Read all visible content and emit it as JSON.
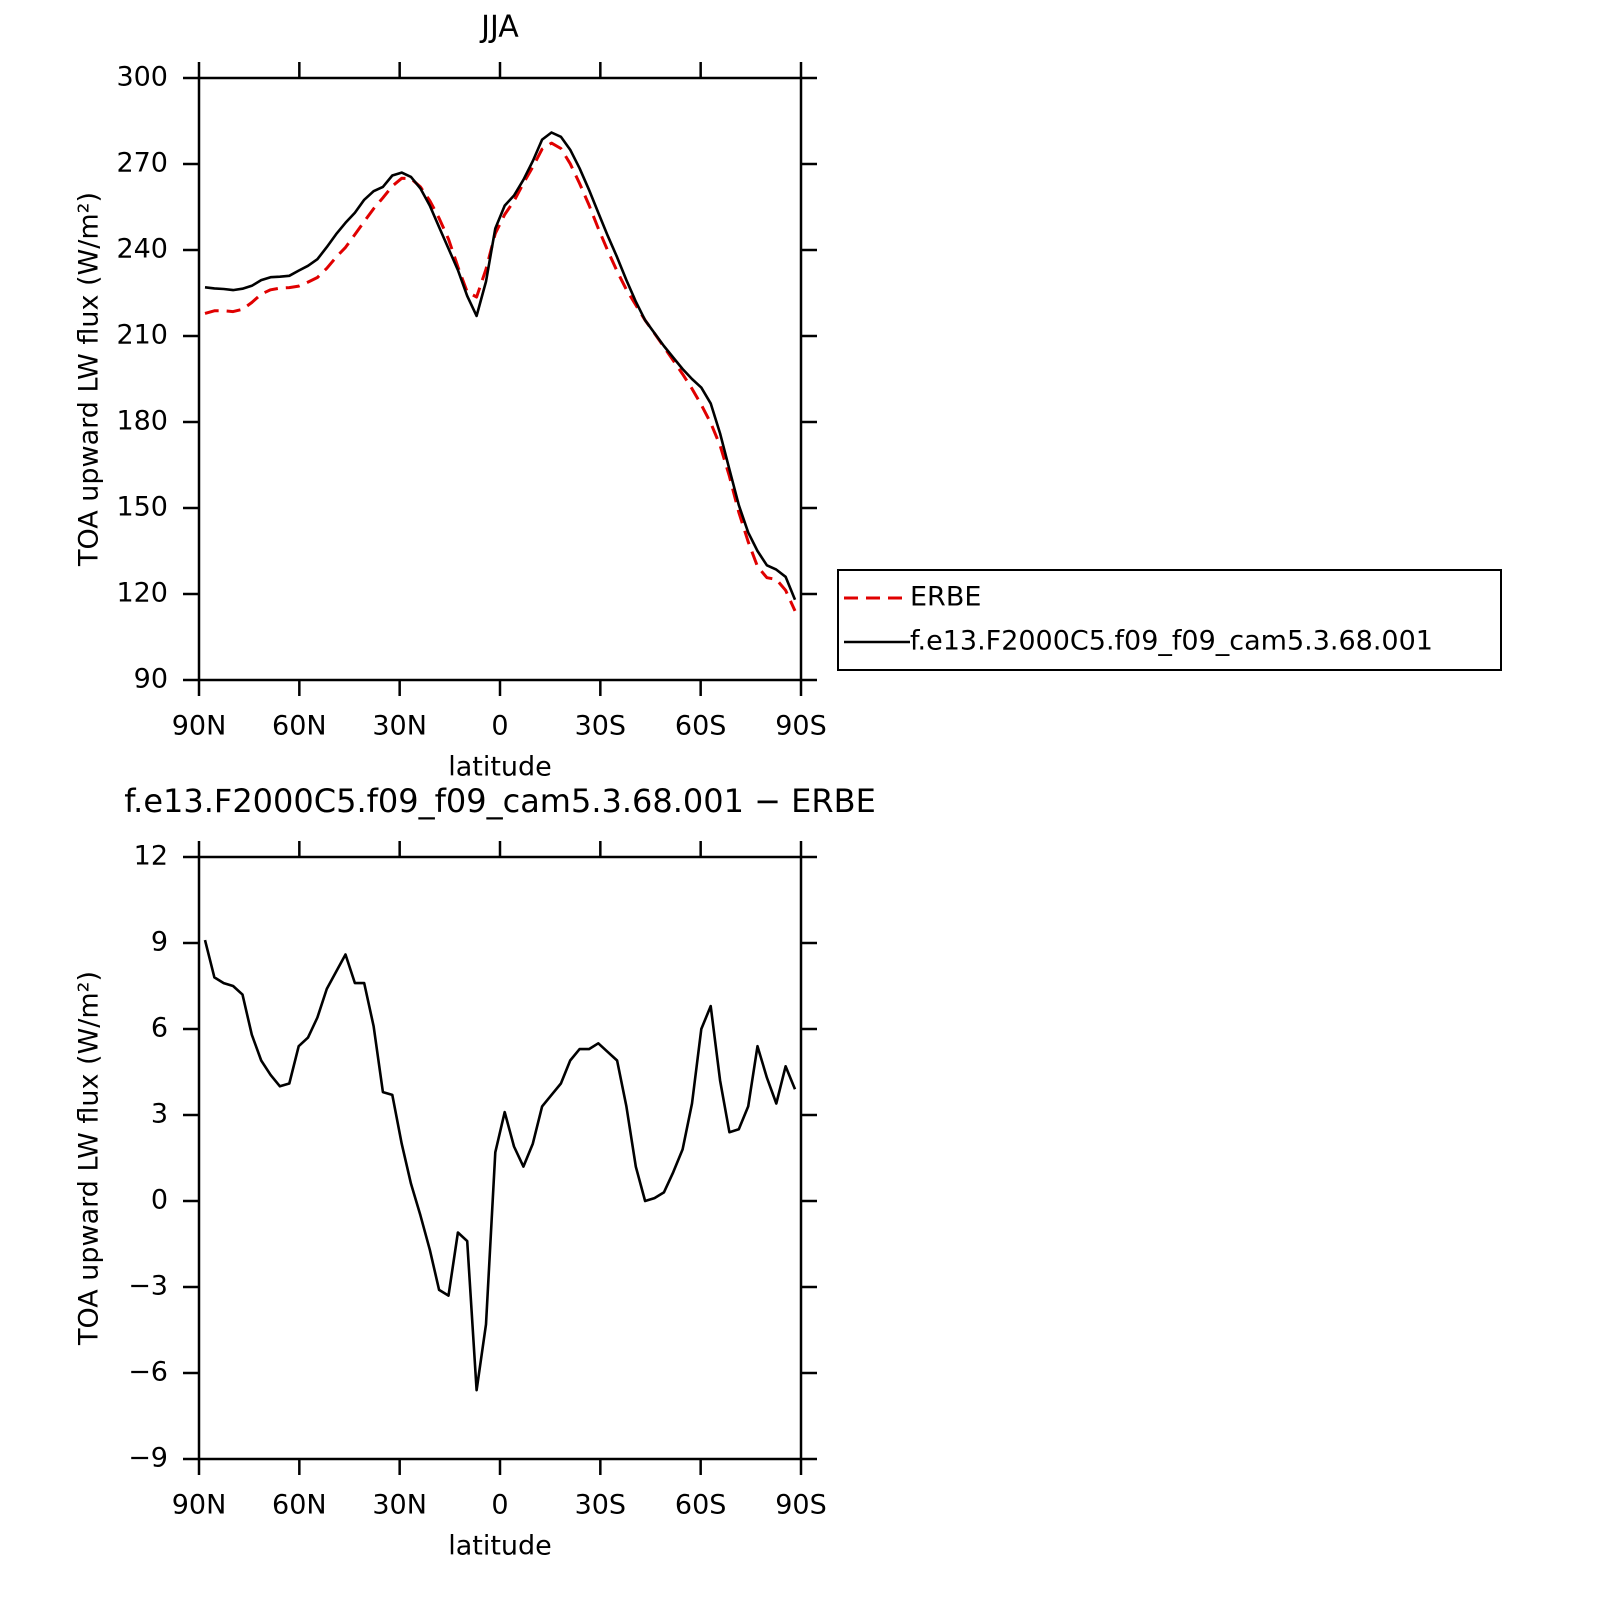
{
  "chart_data": [
    {
      "type": "line",
      "title": "JJA",
      "xlabel": "latitude",
      "ylabel": "TOA upward LW flux (W/m²)",
      "x": [
        88.2,
        85.4,
        82.6,
        79.8,
        77,
        74.2,
        71.4,
        68.6,
        65.8,
        63,
        60.2,
        57.4,
        54.6,
        51.8,
        49,
        46.2,
        43.4,
        40.6,
        37.8,
        35,
        32.2,
        29.4,
        26.6,
        23.8,
        21,
        18.2,
        15.4,
        12.6,
        9.8,
        7,
        4.2,
        1.4,
        -1.4,
        -4.2,
        -7,
        -9.8,
        -12.6,
        -15.4,
        -18.2,
        -21,
        -23.8,
        -26.6,
        -29.4,
        -32.2,
        -35,
        -37.8,
        -40.6,
        -43.4,
        -46.2,
        -49,
        -51.8,
        -54.6,
        -57.4,
        -60.2,
        -63,
        -65.8,
        -68.6,
        -71.4,
        -74.2,
        -77,
        -79.8,
        -82.6,
        -85.4,
        -88.2
      ],
      "series": [
        {
          "name": "ERBE",
          "color": "#e00000",
          "dash": true,
          "values": [
            217.9,
            218.8,
            218.8,
            218.5,
            219.3,
            221.7,
            224.6,
            226.1,
            226.7,
            226.9,
            227.4,
            228.8,
            230.4,
            233.6,
            237.5,
            240.9,
            245.4,
            249.9,
            254.4,
            258.2,
            262.3,
            265.0,
            264.9,
            262.0,
            257.2,
            251.1,
            243.8,
            234.1,
            225.4,
            223.6,
            233.3,
            245.8,
            252.4,
            257.1,
            263.3,
            269.0,
            275.2,
            277.3,
            275.4,
            270.1,
            263.2,
            255.7,
            247.5,
            239.8,
            232.6,
            226.2,
            220.8,
            215.5,
            210.9,
            206.2,
            201.5,
            196.7,
            191.6,
            186.0,
            179.7,
            171.8,
            161.1,
            148.5,
            138.2,
            129.6,
            125.7,
            125.1,
            121.3,
            114.1
          ]
        },
        {
          "name": "f.e13.F2000C5.f09_f09_cam5.3.68.001",
          "color": "#000000",
          "dash": false,
          "values": [
            227.0,
            226.6,
            226.4,
            226.0,
            226.5,
            227.5,
            229.5,
            230.5,
            230.7,
            231.0,
            232.8,
            234.5,
            236.8,
            241.0,
            245.5,
            249.5,
            253.0,
            257.5,
            260.5,
            262.0,
            266.0,
            267.0,
            265.5,
            261.5,
            255.5,
            248.0,
            240.5,
            233.0,
            224.0,
            217.0,
            229.0,
            247.5,
            255.5,
            259.0,
            264.5,
            271.0,
            278.5,
            281.0,
            279.5,
            275.0,
            268.5,
            261.0,
            253.0,
            245.0,
            237.5,
            229.5,
            222.0,
            215.5,
            211.0,
            206.5,
            202.5,
            198.5,
            195.0,
            192.0,
            186.5,
            176.0,
            163.5,
            151.0,
            141.5,
            135.0,
            130.0,
            128.5,
            126.0,
            118.0
          ]
        }
      ],
      "xlim": [
        90,
        -90
      ],
      "xticks": [
        {
          "value": 90,
          "label": "90N"
        },
        {
          "value": 60,
          "label": "60N"
        },
        {
          "value": 30,
          "label": "30N"
        },
        0,
        {
          "value": -30,
          "label": "30S"
        },
        {
          "value": -60,
          "label": "60S"
        },
        {
          "value": -90,
          "label": "90S"
        }
      ],
      "ylim": [
        90,
        300
      ],
      "yticks": [
        90,
        120,
        150,
        180,
        210,
        240,
        270,
        300
      ],
      "legend": "right"
    },
    {
      "type": "line",
      "title": "f.e13.F2000C5.f09_f09_cam5.3.68.001 − ERBE",
      "xlabel": "latitude",
      "ylabel": "TOA upward LW flux (W/m²)",
      "x": [
        88.2,
        85.4,
        82.6,
        79.8,
        77,
        74.2,
        71.4,
        68.6,
        65.8,
        63,
        60.2,
        57.4,
        54.6,
        51.8,
        49,
        46.2,
        43.4,
        40.6,
        37.8,
        35,
        32.2,
        29.4,
        26.6,
        23.8,
        21,
        18.2,
        15.4,
        12.6,
        9.8,
        7,
        4.2,
        1.4,
        -1.4,
        -4.2,
        -7,
        -9.8,
        -12.6,
        -15.4,
        -18.2,
        -21,
        -23.8,
        -26.6,
        -29.4,
        -32.2,
        -35,
        -37.8,
        -40.6,
        -43.4,
        -46.2,
        -49,
        -51.8,
        -54.6,
        -57.4,
        -60.2,
        -63,
        -65.8,
        -68.6,
        -71.4,
        -74.2,
        -77,
        -79.8,
        -82.6,
        -85.4,
        -88.2
      ],
      "series": [
        {
          "color": "#000000",
          "dash": false,
          "values": [
            9.1,
            7.8,
            7.6,
            7.5,
            7.2,
            5.8,
            4.9,
            4.4,
            4.0,
            4.1,
            5.4,
            5.7,
            6.4,
            7.4,
            8.0,
            8.6,
            7.6,
            7.6,
            6.1,
            3.8,
            3.7,
            2.0,
            0.6,
            -0.5,
            -1.7,
            -3.1,
            -3.3,
            -1.1,
            -1.4,
            -6.6,
            -4.3,
            1.7,
            3.1,
            1.9,
            1.2,
            2.0,
            3.3,
            3.7,
            4.1,
            4.9,
            5.3,
            5.3,
            5.5,
            5.2,
            4.9,
            3.3,
            1.2,
            0.0,
            0.1,
            0.3,
            1.0,
            1.8,
            3.4,
            6.0,
            6.8,
            4.2,
            2.4,
            2.5,
            3.3,
            5.4,
            4.3,
            3.4,
            4.7,
            3.9
          ]
        }
      ],
      "xlim": [
        90,
        -90
      ],
      "xticks": [
        {
          "value": 90,
          "label": "90N"
        },
        {
          "value": 60,
          "label": "60N"
        },
        {
          "value": 30,
          "label": "30N"
        },
        0,
        {
          "value": -30,
          "label": "30S"
        },
        {
          "value": -60,
          "label": "60S"
        },
        {
          "value": -90,
          "label": "90S"
        }
      ],
      "ylim": [
        -9,
        12
      ],
      "yticks": [
        {
          "value": -9,
          "label": "−9"
        },
        {
          "value": -6,
          "label": "−6"
        },
        {
          "value": -3,
          "label": "−3"
        },
        0,
        3,
        6,
        9,
        12
      ]
    }
  ]
}
